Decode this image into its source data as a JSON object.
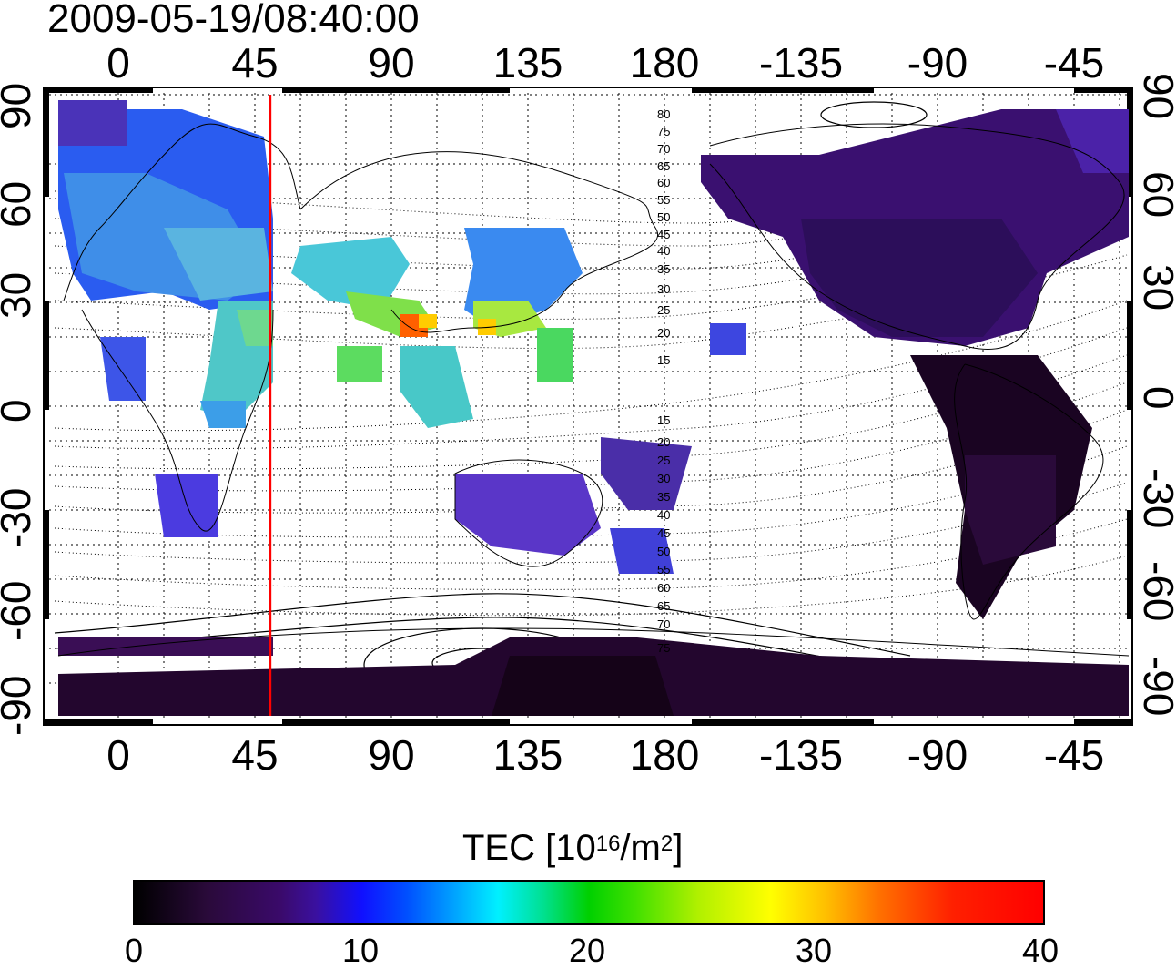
{
  "title": "2009-05-19/08:40:00",
  "lon_ticks": [
    "0",
    "45",
    "90",
    "135",
    "180",
    "-135",
    "-90",
    "-45"
  ],
  "lat_ticks_left": [
    "90",
    "60",
    "30",
    "0",
    "-30",
    "-60",
    "-90"
  ],
  "lat_ticks_right": [
    "90",
    "60",
    "30",
    "0",
    "-30",
    "-60",
    "-90"
  ],
  "contour_labels": [
    "80",
    "75",
    "70",
    "65",
    "60",
    "55",
    "50",
    "45",
    "40",
    "35",
    "30",
    "25",
    "20",
    "15",
    "15",
    "20",
    "25",
    "30",
    "35",
    "40",
    "45",
    "50",
    "55",
    "60",
    "65",
    "70",
    "75"
  ],
  "colorbar": {
    "title_main": "TEC  [10",
    "title_sup1": "16",
    "title_mid": "/m",
    "title_sup2": "2",
    "title_end": "]",
    "ticks": [
      "0",
      "10",
      "20",
      "30",
      "40"
    ]
  },
  "colors": {
    "marker_line": "#ff0000",
    "axis": "#000000"
  },
  "marker_longitude": 50
}
